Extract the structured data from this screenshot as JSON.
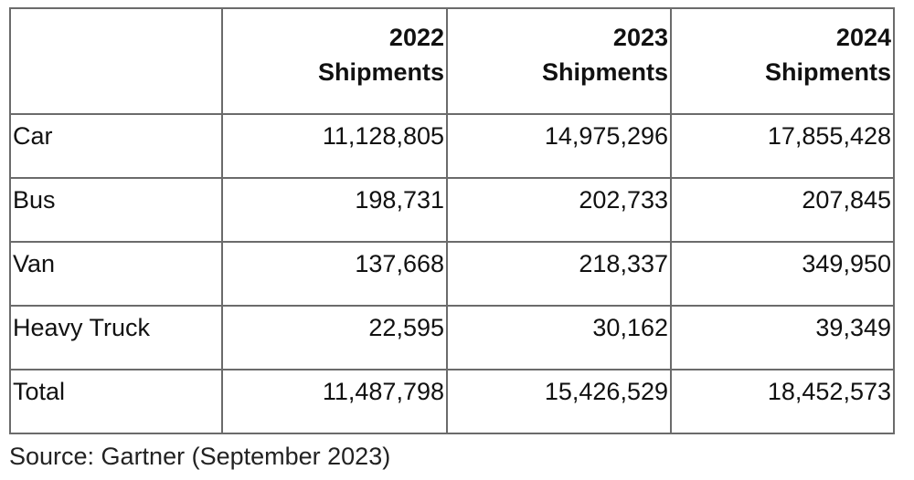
{
  "table": {
    "headers": [
      {
        "year": "",
        "label": ""
      },
      {
        "year": "2022",
        "label": "Shipments"
      },
      {
        "year": "2023",
        "label": "Shipments"
      },
      {
        "year": "2024",
        "label": "Shipments"
      }
    ],
    "rows": [
      {
        "label": "Car",
        "values": [
          "11,128,805",
          "14,975,296",
          "17,855,428"
        ]
      },
      {
        "label": "Bus",
        "values": [
          "198,731",
          "202,733",
          "207,845"
        ]
      },
      {
        "label": "Van",
        "values": [
          "137,668",
          "218,337",
          "349,950"
        ]
      },
      {
        "label": "Heavy Truck",
        "values": [
          "22,595",
          "30,162",
          "39,349"
        ]
      },
      {
        "label": "Total",
        "values": [
          "11,487,798",
          "15,426,529",
          "18,452,573"
        ]
      }
    ]
  },
  "source": "Source: Gartner (September 2023)"
}
